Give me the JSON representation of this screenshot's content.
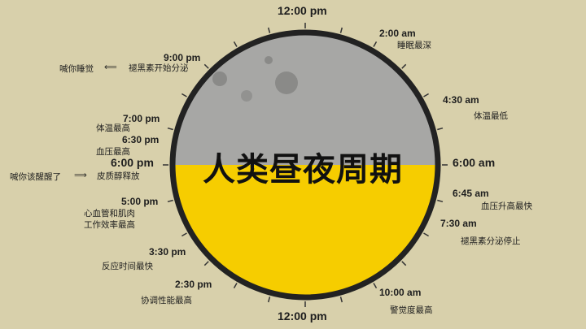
{
  "title": "人类昼夜周期",
  "colors": {
    "background": "#d8d0ab",
    "moon": "#a7a7a5",
    "crater": "#8a8a88",
    "sun": "#f6cd00",
    "rim": "#222222"
  },
  "icons": {
    "pointer_left": "left-arrow-icon",
    "pointer_right": "right-arrow-icon"
  },
  "times": {
    "t1200_top": "12:00 pm",
    "t0200": "2:00 am",
    "t0430": "4:30 am",
    "t0600am": "6:00 am",
    "t0645": "6:45 am",
    "t0730": "7:30 am",
    "t1000": "10:00 am",
    "t1200_bottom": "12:00 pm",
    "t0230pm": "2:30 pm",
    "t0330pm": "3:30 pm",
    "t0500pm": "5:00 pm",
    "t0600pm": "6:00 pm",
    "t0630pm": "6:30 pm",
    "t0700pm": "7:00 pm",
    "t0900pm": "9:00 pm"
  },
  "notes": {
    "n0200": "睡眠最深",
    "n0430": "体温最低",
    "n0645": "血压升高最快",
    "n0730": "褪黑素分泌停止",
    "n1000": "警觉度最高",
    "n0230pm": "协调性能最高",
    "n0330pm": "反应时间最快",
    "n0500pm_1": "心血管和肌肉",
    "n0500pm_2": "工作效率最高",
    "n0600pm": "皮质醇释放",
    "n0630pm": "血压最高",
    "n0700pm": "体温最高",
    "n0900pm": "褪黑素开始分泌"
  },
  "side_notes": {
    "sleep": "喊你睡觉",
    "sleep_arrow": "⟸",
    "wake": "喊你该醒醒了",
    "wake_arrow": "⟹"
  }
}
